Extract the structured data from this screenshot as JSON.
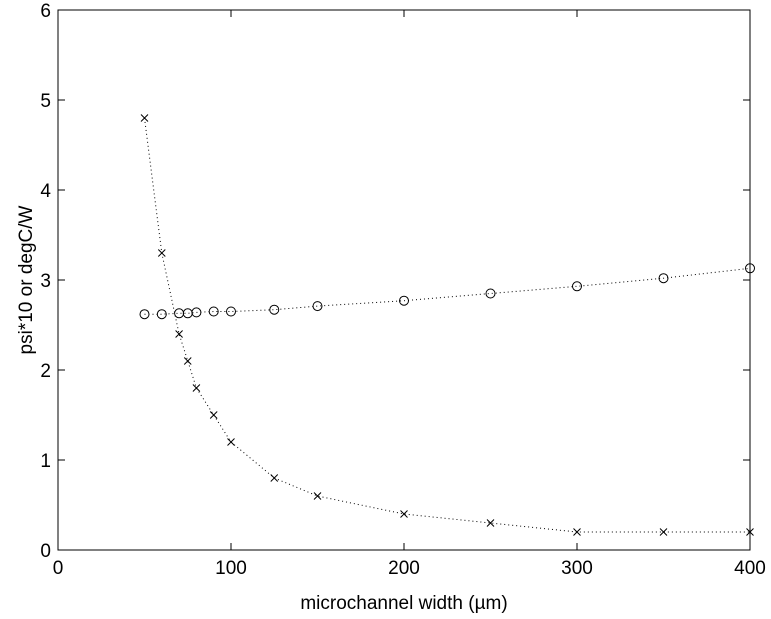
{
  "chart_data": {
    "type": "scatter",
    "title": "",
    "xlabel": "microchannel width (µm)",
    "ylabel": "psi*10 or degC/W",
    "xlim": [
      0,
      400
    ],
    "ylim": [
      0,
      6
    ],
    "xticks": [
      0,
      100,
      200,
      300,
      400
    ],
    "yticks": [
      0,
      1,
      2,
      3,
      4,
      5,
      6
    ],
    "grid": false,
    "legend": "none",
    "series": [
      {
        "marker": "circle",
        "line": "dotted",
        "color": "#000000",
        "x": [
          50,
          60,
          70,
          75,
          80,
          90,
          100,
          125,
          150,
          200,
          250,
          300,
          350,
          400
        ],
        "y": [
          2.62,
          2.62,
          2.63,
          2.63,
          2.64,
          2.65,
          2.65,
          2.67,
          2.71,
          2.77,
          2.85,
          2.93,
          3.02,
          3.13
        ]
      },
      {
        "marker": "x",
        "line": "dotted",
        "color": "#000000",
        "x": [
          50,
          60,
          70,
          75,
          80,
          90,
          100,
          125,
          150,
          200,
          250,
          300,
          350,
          400
        ],
        "y": [
          4.8,
          3.3,
          2.4,
          2.1,
          1.8,
          1.5,
          1.2,
          0.8,
          0.6,
          0.4,
          0.3,
          0.2,
          0.2,
          0.2
        ]
      }
    ]
  }
}
